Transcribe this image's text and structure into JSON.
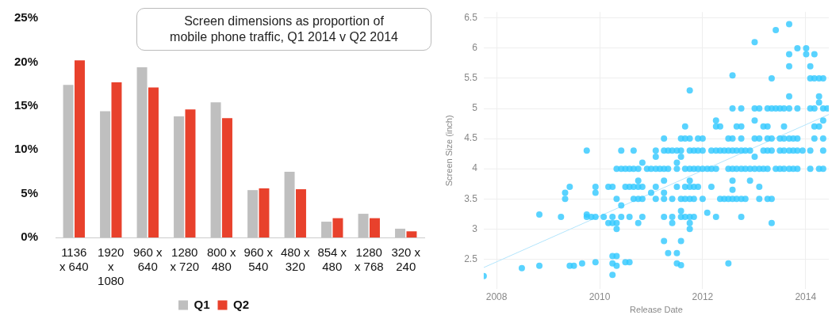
{
  "chart_data": [
    {
      "type": "bar",
      "title": "Screen dimensions as proportion of mobile phone traffic, Q1 2014 v Q2 2014",
      "categories": [
        "1136 x 640",
        "1920 x 1080",
        "960 x 640",
        "1280 x 720",
        "800 x 480",
        "960 x 540",
        "480 x 320",
        "854 x 480",
        "1280 x 768",
        "320 x 240"
      ],
      "series": [
        {
          "name": "Q1",
          "color": "#bfbfbf",
          "values": [
            17.4,
            14.4,
            19.4,
            13.8,
            15.4,
            5.4,
            7.5,
            1.8,
            2.7,
            1.0
          ]
        },
        {
          "name": "Q2",
          "color": "#e8412c",
          "values": [
            20.2,
            17.7,
            17.1,
            14.6,
            13.6,
            5.6,
            5.5,
            2.2,
            2.2,
            0.7
          ]
        }
      ],
      "ylim": [
        0,
        25
      ],
      "yticks": [
        {
          "value": 0,
          "label": "0%"
        },
        {
          "value": 5,
          "label": "5%"
        },
        {
          "value": 10,
          "label": "10%"
        },
        {
          "value": 15,
          "label": "15%"
        },
        {
          "value": 20,
          "label": "20%"
        },
        {
          "value": 25,
          "label": "25%"
        }
      ],
      "grid": false,
      "legend": "bottom"
    },
    {
      "type": "scatter",
      "xlabel": "Release Date",
      "ylabel": "Screen Size (inch)",
      "xlim": [
        2007.75,
        2014.45
      ],
      "xticks": [
        2008,
        2010,
        2012,
        2014
      ],
      "ylim": [
        2.0,
        6.6
      ],
      "yticks": [
        2.5,
        3,
        3.5,
        4,
        4.5,
        5,
        5.5,
        6,
        6.5
      ],
      "grid": true,
      "series": [
        {
          "color": "#33c9ff",
          "marker": "circle",
          "x": [
            2010.33,
            2010.42,
            2010.5,
            2010.58,
            2010.66,
            2010.75,
            2010.92,
            2011.0,
            2011.09,
            2011.17,
            2011.25,
            2011.33,
            2011.5,
            2011.66,
            2011.75,
            2011.83,
            2011.91,
            2012.0,
            2012.09,
            2012.17,
            2012.26,
            2012.5,
            2012.58,
            2012.66,
            2012.75,
            2012.83,
            2012.92,
            2013.01,
            2013.1,
            2013.18,
            2013.26,
            2013.42,
            2013.5,
            2013.58,
            2013.68,
            2013.76,
            2013.84,
            2014.09,
            2014.26,
            2014.34,
            2009.75,
            2010.42,
            2010.66,
            2011.09,
            2011.25,
            2011.33,
            2011.41,
            2011.5,
            2011.58,
            2011.75,
            2011.83,
            2011.91,
            2012.0,
            2012.17,
            2012.26,
            2012.34,
            2012.42,
            2012.5,
            2012.58,
            2012.66,
            2012.75,
            2012.83,
            2012.92,
            2013.18,
            2013.26,
            2013.34,
            2013.5,
            2013.58,
            2013.68,
            2013.76,
            2013.84,
            2013.94,
            2014.09,
            2014.34,
            2011.25,
            2011.58,
            2011.66,
            2011.75,
            2011.91,
            2012.0,
            2012.5,
            2012.58,
            2012.75,
            2013.01,
            2013.1,
            2013.26,
            2013.34,
            2013.5,
            2013.58,
            2013.68,
            2013.76,
            2013.84,
            2014.17,
            2014.34,
            2011.66,
            2012.26,
            2012.34,
            2012.66,
            2012.75,
            2013.18,
            2013.26,
            2013.58,
            2014.17,
            2014.26,
            2012.58,
            2012.75,
            2013.01,
            2013.1,
            2013.26,
            2013.34,
            2013.42,
            2013.5,
            2013.58,
            2013.68,
            2013.84,
            2014.09,
            2014.17,
            2014.34,
            2014.42,
            2009.33,
            2010.33,
            2010.66,
            2010.75,
            2010.83,
            2011.09,
            2011.25,
            2011.41,
            2011.58,
            2011.66,
            2011.75,
            2011.83,
            2012.0,
            2012.34,
            2012.42,
            2012.5,
            2012.58,
            2012.66,
            2012.75,
            2012.83,
            2013.1,
            2013.26,
            2013.34,
            2009.42,
            2009.92,
            2010.17,
            2010.25,
            2010.5,
            2010.58,
            2010.66,
            2010.75,
            2010.83,
            2011.09,
            2011.5,
            2011.66,
            2011.75,
            2011.83,
            2011.91,
            2012.17,
            2013.1,
            2009.25,
            2009.75,
            2009.84,
            2009.92,
            2010.08,
            2010.25,
            2010.42,
            2010.58,
            2010.83,
            2011.25,
            2011.41,
            2011.58,
            2011.66,
            2011.75,
            2011.83,
            2012.26,
            2012.75,
            2007.75,
            2008.49,
            2008.83,
            2008.83,
            2009.33,
            2009.42,
            2009.5,
            2009.66,
            2009.75,
            2009.92,
            2009.92,
            2010.17,
            2010.25,
            2010.25,
            2010.25,
            2010.25,
            2010.33,
            2010.33,
            2010.33,
            2010.33,
            2010.42,
            2010.5,
            2010.58,
            2012.58,
            2013.34,
            2014.09,
            2014.17,
            2014.26,
            2014.34,
            2013.01,
            2013.42,
            2013.68,
            2013.84,
            2014.01,
            2013.68,
            2014.01,
            2014.17,
            2013.68,
            2014.09,
            2011.75,
            2013.68,
            2014.26,
            2014.26,
            2012.26,
            2013.01,
            2014.34,
            2010.83,
            2011.5,
            2011.09,
            2011.58,
            2013.01,
            2010.75,
            2011.25,
            2011.75,
            2012.58,
            2012.92,
            2012.58,
            2011.0,
            2011.25,
            2011.58,
            2012.09,
            2010.75,
            2011.41,
            2011.75,
            2013.34,
            2011.75,
            2011.25,
            2011.58,
            2011.33,
            2011.5,
            2011.5,
            2011.58,
            2012.5
          ],
          "values": [
            4,
            4,
            4,
            4,
            4,
            4,
            4,
            4,
            4,
            4,
            4,
            4,
            4,
            4,
            4,
            4,
            4,
            4,
            4,
            4,
            4,
            4,
            4,
            4,
            4,
            4,
            4,
            4,
            4,
            4,
            4,
            4,
            4,
            4,
            4,
            4,
            4,
            4,
            4,
            4,
            4.3,
            4.3,
            4.3,
            4.3,
            4.3,
            4.3,
            4.3,
            4.3,
            4.3,
            4.3,
            4.3,
            4.3,
            4.3,
            4.3,
            4.3,
            4.3,
            4.3,
            4.3,
            4.3,
            4.3,
            4.3,
            4.3,
            4.3,
            4.3,
            4.3,
            4.3,
            4.3,
            4.3,
            4.3,
            4.3,
            4.3,
            4.3,
            4.3,
            4.3,
            4.5,
            4.5,
            4.5,
            4.5,
            4.5,
            4.5,
            4.5,
            4.5,
            4.5,
            4.5,
            4.5,
            4.5,
            4.5,
            4.5,
            4.5,
            4.5,
            4.5,
            4.5,
            4.5,
            4.5,
            4.7,
            4.7,
            4.7,
            4.7,
            4.7,
            4.7,
            4.7,
            4.7,
            4.7,
            4.7,
            5,
            5,
            5,
            5,
            5,
            5,
            5,
            5,
            5,
            5,
            5,
            5,
            5,
            5,
            5,
            3.5,
            3.5,
            3.5,
            3.5,
            3.5,
            3.5,
            3.5,
            3.5,
            3.5,
            3.5,
            3.5,
            3.5,
            3.5,
            3.5,
            3.5,
            3.5,
            3.5,
            3.5,
            3.5,
            3.5,
            3.5,
            3.5,
            3.5,
            3.7,
            3.7,
            3.7,
            3.7,
            3.7,
            3.7,
            3.7,
            3.7,
            3.7,
            3.7,
            3.7,
            3.7,
            3.7,
            3.7,
            3.7,
            3.7,
            3.7,
            3.2,
            3.2,
            3.2,
            3.2,
            3.2,
            3.2,
            3.2,
            3.2,
            3.2,
            3.2,
            3.2,
            3.2,
            3.2,
            3.2,
            3.2,
            3.2,
            3.2,
            2.22,
            2.35,
            2.39,
            3.24,
            3.6,
            2.39,
            2.39,
            2.43,
            3.24,
            3.6,
            2.45,
            3.1,
            3.1,
            2.55,
            2.43,
            2.24,
            3.1,
            3.0,
            2.55,
            2.39,
            3.39,
            2.45,
            2.45,
            5.55,
            5.5,
            5.5,
            5.5,
            5.5,
            5.5,
            6.1,
            6.3,
            6.4,
            6.0,
            6.0,
            5.9,
            5.9,
            5.9,
            5.7,
            5.7,
            5.3,
            5.2,
            5.2,
            5.1,
            4.8,
            4.8,
            4.8,
            4.1,
            4.1,
            4.2,
            4.2,
            4.2,
            3.8,
            3.8,
            3.8,
            3.8,
            3.8,
            3.65,
            3.6,
            3.6,
            3.3,
            3.27,
            3.1,
            3.1,
            3.1,
            3.1,
            3.0,
            2.8,
            2.8,
            2.6,
            2.6,
            2.43,
            2.4,
            2.43
          ]
        },
        {
          "type": "line",
          "color": "#b3e5fc",
          "x": [
            2007.75,
            2014.45
          ],
          "values": [
            2.36,
            4.9
          ]
        }
      ]
    }
  ]
}
